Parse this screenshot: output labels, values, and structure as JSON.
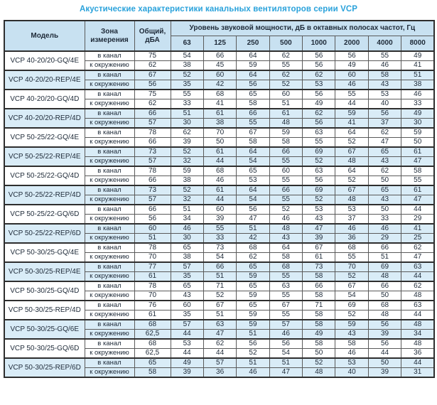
{
  "title": "Акустические характеристики канальных вентиляторов  серии VCP",
  "colors": {
    "title": "#2aa2db",
    "header_bg": "#c8e1f1",
    "row_highlight": "#d9ecf7",
    "border_thin": "#5a5a5a",
    "border_heavy": "#2e2e2e",
    "text": "#1e2a38"
  },
  "table": {
    "headers": {
      "model": "Модель",
      "zone": "Зона\nизмерения",
      "total": "Общий,\nдБА",
      "spl_group": "Уровень звуковой мощности, дБ в октавных полосах частот, Гц",
      "frequencies": [
        "63",
        "125",
        "250",
        "500",
        "1000",
        "2000",
        "4000",
        "8000"
      ]
    },
    "zone_labels": {
      "duct": "в канал",
      "ambient": "к окружению"
    },
    "rows": [
      {
        "model": "VCP 40-20/20-GQ/4E",
        "shaded": false,
        "duct": {
          "total": "75",
          "bands": [
            54,
            66,
            64,
            62,
            56,
            56,
            55,
            49
          ]
        },
        "ambient": {
          "total": "62",
          "bands": [
            38,
            45,
            59,
            55,
            56,
            49,
            46,
            41
          ]
        }
      },
      {
        "model": "VCP 40-20/20-REP/4E",
        "shaded": true,
        "duct": {
          "total": "67",
          "bands": [
            52,
            60,
            64,
            62,
            62,
            60,
            58,
            51
          ]
        },
        "ambient": {
          "total": "56",
          "bands": [
            35,
            42,
            56,
            52,
            53,
            46,
            43,
            38
          ]
        }
      },
      {
        "model": "VCP 40-20/20-GQ/4D",
        "shaded": false,
        "duct": {
          "total": "75",
          "bands": [
            55,
            68,
            65,
            60,
            56,
            55,
            53,
            46
          ]
        },
        "ambient": {
          "total": "62",
          "bands": [
            33,
            41,
            58,
            51,
            49,
            44,
            40,
            33
          ]
        }
      },
      {
        "model": "VCP 40-20/20-REP/4D",
        "shaded": true,
        "duct": {
          "total": "66",
          "bands": [
            51,
            61,
            66,
            61,
            62,
            59,
            56,
            49
          ]
        },
        "ambient": {
          "total": "57",
          "bands": [
            30,
            38,
            55,
            48,
            56,
            41,
            37,
            30
          ]
        }
      },
      {
        "model": "VCP 50-25/22-GQ/4E",
        "shaded": false,
        "duct": {
          "total": "78",
          "bands": [
            62,
            70,
            67,
            59,
            63,
            64,
            62,
            59
          ]
        },
        "ambient": {
          "total": "66",
          "bands": [
            39,
            50,
            58,
            58,
            55,
            52,
            47,
            50
          ]
        }
      },
      {
        "model": "VCP 50-25/22-REP/4E",
        "shaded": true,
        "duct": {
          "total": "73",
          "bands": [
            52,
            61,
            64,
            66,
            69,
            67,
            65,
            61
          ]
        },
        "ambient": {
          "total": "57",
          "bands": [
            32,
            44,
            54,
            55,
            52,
            48,
            43,
            47
          ]
        }
      },
      {
        "model": "VCP 50-25/22-GQ/4D",
        "shaded": false,
        "duct": {
          "total": "78",
          "bands": [
            59,
            68,
            65,
            60,
            63,
            64,
            62,
            58
          ]
        },
        "ambient": {
          "total": "66",
          "bands": [
            38,
            46,
            53,
            55,
            56,
            52,
            50,
            55
          ]
        }
      },
      {
        "model": "VCP 50-25/22-REP/4D",
        "shaded": true,
        "duct": {
          "total": "73",
          "bands": [
            52,
            61,
            64,
            66,
            69,
            67,
            65,
            61
          ]
        },
        "ambient": {
          "total": "57",
          "bands": [
            32,
            44,
            54,
            55,
            52,
            48,
            43,
            47
          ]
        }
      },
      {
        "model": "VCP 50-25/22-GQ/6D",
        "shaded": false,
        "duct": {
          "total": "66",
          "bands": [
            51,
            60,
            56,
            52,
            53,
            53,
            50,
            44
          ]
        },
        "ambient": {
          "total": "56",
          "bands": [
            34,
            39,
            47,
            46,
            43,
            37,
            33,
            29
          ]
        }
      },
      {
        "model": "VCP 50-25/22-REP/6D",
        "shaded": true,
        "duct": {
          "total": "60",
          "bands": [
            46,
            55,
            51,
            48,
            47,
            46,
            46,
            41
          ]
        },
        "ambient": {
          "total": "51",
          "bands": [
            30,
            33,
            42,
            43,
            39,
            36,
            29,
            25
          ]
        }
      },
      {
        "model": "VCP 50-30/25-GQ/4E",
        "shaded": false,
        "duct": {
          "total": "78",
          "bands": [
            65,
            73,
            68,
            64,
            67,
            68,
            66,
            62
          ]
        },
        "ambient": {
          "total": "70",
          "bands": [
            38,
            54,
            62,
            58,
            61,
            55,
            51,
            47
          ]
        }
      },
      {
        "model": "VCP 50-30/25-REP/4E",
        "shaded": true,
        "duct": {
          "total": "77",
          "bands": [
            57,
            66,
            65,
            68,
            73,
            70,
            69,
            63
          ]
        },
        "ambient": {
          "total": "61",
          "bands": [
            35,
            51,
            59,
            55,
            58,
            52,
            48,
            44
          ]
        }
      },
      {
        "model": "VCP 50-30/25-GQ/4D",
        "shaded": false,
        "duct": {
          "total": "78",
          "bands": [
            65,
            71,
            65,
            63,
            66,
            67,
            66,
            62
          ]
        },
        "ambient": {
          "total": "70",
          "bands": [
            43,
            52,
            59,
            55,
            58,
            54,
            50,
            48
          ]
        }
      },
      {
        "model": "VCP 50-30/25-REP/4D",
        "shaded": false,
        "duct": {
          "total": "76",
          "bands": [
            60,
            67,
            65,
            67,
            71,
            69,
            68,
            63
          ]
        },
        "ambient": {
          "total": "61",
          "bands": [
            35,
            51,
            59,
            55,
            58,
            52,
            48,
            44
          ]
        }
      },
      {
        "model": "VCP 50-30/25-GQ/6E",
        "shaded": true,
        "duct": {
          "total": "68",
          "bands": [
            57,
            63,
            59,
            57,
            58,
            59,
            56,
            48
          ]
        },
        "ambient": {
          "total": "62,5",
          "bands": [
            44,
            47,
            51,
            46,
            49,
            43,
            39,
            34
          ]
        }
      },
      {
        "model": "VCP 50-30/25-GQ/6D",
        "shaded": false,
        "duct": {
          "total": "68",
          "bands": [
            53,
            62,
            56,
            56,
            58,
            58,
            56,
            48
          ]
        },
        "ambient": {
          "total": "62,5",
          "bands": [
            44,
            44,
            52,
            54,
            50,
            46,
            44,
            36
          ]
        }
      },
      {
        "model": "VCP 50-30/25-REP/6D",
        "shaded": true,
        "duct": {
          "total": "65",
          "bands": [
            49,
            57,
            51,
            51,
            52,
            53,
            50,
            44
          ]
        },
        "ambient": {
          "total": "58",
          "bands": [
            39,
            36,
            46,
            47,
            48,
            40,
            39,
            31
          ]
        }
      }
    ]
  }
}
